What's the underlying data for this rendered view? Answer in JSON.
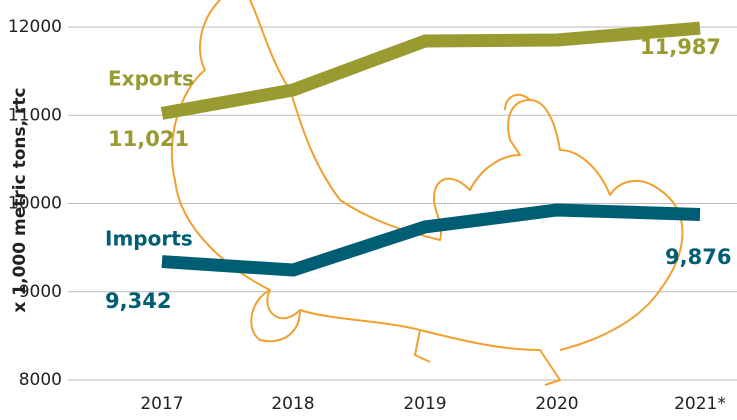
{
  "chart_data": {
    "type": "line",
    "y_label": "x 1,000 metric tons, rtc",
    "categories": [
      "2017",
      "2018",
      "2019",
      "2020",
      "2021*"
    ],
    "series": [
      {
        "name": "Exports",
        "color": "#999a2f",
        "values": [
          11021,
          11286,
          11841,
          11853,
          11987
        ],
        "value_labels": [
          "11,021",
          null,
          null,
          null,
          "11,987"
        ]
      },
      {
        "name": "Imports",
        "color": "#005e74",
        "values": [
          9342,
          9246,
          9734,
          9927,
          9876
        ],
        "value_labels": [
          "9,342",
          null,
          null,
          null,
          "9,876"
        ]
      }
    ],
    "ylim": [
      8000,
      12000
    ],
    "yticks": [
      8000,
      9000,
      10000,
      11000,
      12000
    ],
    "grid": true
  }
}
